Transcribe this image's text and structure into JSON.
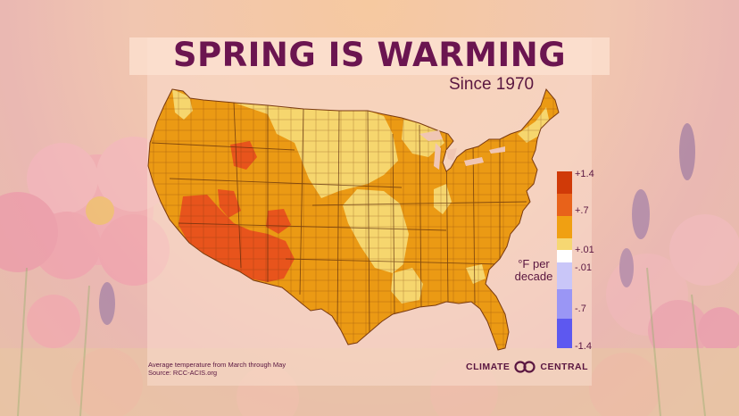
{
  "title": "SPRING IS WARMING",
  "subtitle": "Since 1970",
  "legend": {
    "ticks": [
      "+1.4",
      "+.7",
      "+.01",
      "-.01",
      "-.7",
      "-1.4"
    ],
    "unit_line1": "°F per",
    "unit_line2": "decade",
    "colors": [
      "#d03a08",
      "#e8621a",
      "#f0a012",
      "#f6d772",
      "#ffffff",
      "#c9c6f8",
      "#9a96f5",
      "#5d58f0"
    ]
  },
  "map_colors": {
    "hot": "#e8541c",
    "warm": "#eb9a14",
    "mild": "#f6d66e",
    "border": "#7a3a10"
  },
  "footer": {
    "note": "Average temperature from March through May",
    "source": "Source: RCC-ACIS.org"
  },
  "brand": {
    "left": "CLIMATE",
    "right": "CENTRAL",
    "icon": "climate-central-logo-icon"
  }
}
